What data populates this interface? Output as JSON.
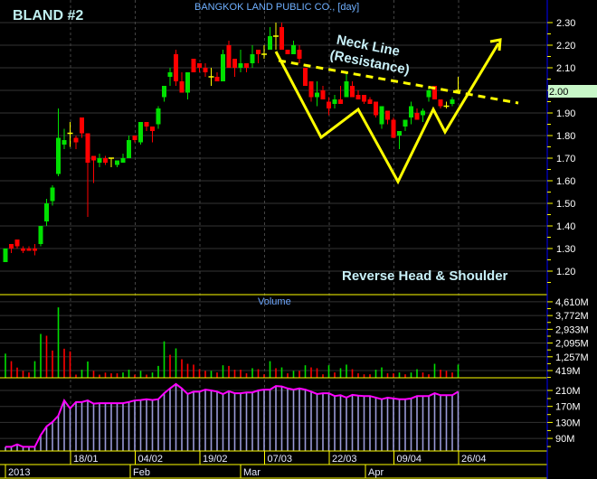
{
  "header": {
    "symbol_title": "BLAND #2",
    "company_title": "BANGKOK LAND PUBLIC CO., [day]"
  },
  "colors": {
    "up": "#00e000",
    "down": "#ff0000",
    "unchanged": "#ffff00",
    "grid": "#333333",
    "panel_border": "#ffff00",
    "axis_line": "#0000ff",
    "ma_line": "#ff00ff",
    "ma_bars": "#9a9ad8",
    "last_price_bg": "#c8f7c8",
    "annotation": "#ffff00",
    "annotation_text": "#c8f0f8"
  },
  "annotations": {
    "neck_line": "Neck Line",
    "resistance": "(Resistance)",
    "pattern": "Reverse Head & Shoulder"
  },
  "chart_data": [
    {
      "type": "candlestick",
      "title": "BANGKOK LAND PUBLIC CO., [day]",
      "ylim": [
        1.2,
        2.3
      ],
      "y_ticks": [
        "2.30",
        "2.20",
        "2.10",
        "2.00",
        "1.90",
        "1.80",
        "1.70",
        "1.60",
        "1.50",
        "1.40",
        "1.30",
        "1.20"
      ],
      "last_price": "2.00",
      "grid": true,
      "ohlc": [
        [
          1.24,
          1.3,
          1.24,
          1.3
        ],
        [
          1.32,
          1.32,
          1.28,
          1.3
        ],
        [
          1.34,
          1.34,
          1.3,
          1.31
        ],
        [
          1.3,
          1.31,
          1.28,
          1.29
        ],
        [
          1.3,
          1.31,
          1.29,
          1.29
        ],
        [
          1.3,
          1.32,
          1.27,
          1.29
        ],
        [
          1.32,
          1.4,
          1.31,
          1.4
        ],
        [
          1.42,
          1.52,
          1.4,
          1.5
        ],
        [
          1.51,
          1.58,
          1.49,
          1.57
        ],
        [
          1.63,
          1.92,
          1.62,
          1.79
        ],
        [
          1.76,
          1.83,
          1.74,
          1.78
        ],
        [
          1.81,
          1.86,
          1.75,
          1.81
        ],
        [
          1.79,
          1.8,
          1.74,
          1.77
        ],
        [
          1.88,
          1.88,
          1.79,
          1.81
        ],
        [
          1.81,
          1.81,
          1.44,
          1.68
        ],
        [
          1.71,
          1.71,
          1.59,
          1.69
        ],
        [
          1.68,
          1.72,
          1.66,
          1.7
        ],
        [
          1.7,
          1.71,
          1.67,
          1.68
        ],
        [
          1.7,
          1.7,
          1.66,
          1.7
        ],
        [
          1.67,
          1.69,
          1.66,
          1.69
        ],
        [
          1.68,
          1.72,
          1.68,
          1.7
        ],
        [
          1.7,
          1.8,
          1.7,
          1.78
        ],
        [
          1.8,
          1.8,
          1.77,
          1.78
        ],
        [
          1.77,
          1.86,
          1.76,
          1.86
        ],
        [
          1.86,
          1.86,
          1.82,
          1.84
        ],
        [
          1.84,
          1.84,
          1.77,
          1.82
        ],
        [
          1.85,
          1.93,
          1.83,
          1.92
        ],
        [
          1.97,
          2.02,
          1.95,
          2.02
        ],
        [
          2.06,
          2.1,
          2.02,
          2.08
        ],
        [
          2.16,
          2.18,
          2.02,
          2.04
        ],
        [
          2.04,
          2.08,
          1.99,
          1.99
        ],
        [
          1.99,
          2.08,
          1.96,
          2.08
        ],
        [
          2.14,
          2.14,
          2.08,
          2.08
        ],
        [
          2.12,
          2.12,
          2.08,
          2.1
        ],
        [
          2.1,
          2.12,
          2.06,
          2.08
        ],
        [
          2.06,
          2.1,
          2.02,
          2.06
        ],
        [
          2.06,
          2.08,
          2.04,
          2.04
        ],
        [
          2.04,
          2.18,
          2.04,
          2.16
        ],
        [
          2.2,
          2.22,
          2.1,
          2.1
        ],
        [
          2.14,
          2.14,
          2.06,
          2.1
        ],
        [
          2.1,
          2.18,
          2.08,
          2.12
        ],
        [
          2.12,
          2.12,
          2.08,
          2.1
        ],
        [
          2.12,
          2.2,
          2.1,
          2.16
        ],
        [
          2.18,
          2.18,
          2.12,
          2.16
        ],
        [
          2.16,
          2.2,
          2.14,
          2.16
        ],
        [
          2.18,
          2.28,
          2.18,
          2.24
        ],
        [
          2.24,
          2.3,
          2.18,
          2.24
        ],
        [
          2.28,
          2.3,
          2.18,
          2.18
        ],
        [
          2.18,
          2.18,
          2.16,
          2.16
        ],
        [
          2.16,
          2.22,
          2.16,
          2.2
        ],
        [
          2.18,
          2.2,
          2.12,
          2.14
        ],
        [
          2.1,
          2.1,
          2.02,
          2.02
        ],
        [
          2.04,
          2.04,
          1.95,
          1.97
        ],
        [
          1.97,
          2.04,
          1.93,
          1.99
        ],
        [
          2.0,
          2.02,
          1.96,
          1.96
        ],
        [
          1.95,
          1.97,
          1.89,
          1.92
        ],
        [
          1.94,
          1.98,
          1.92,
          1.96
        ],
        [
          1.96,
          2.02,
          1.94,
          1.94
        ],
        [
          1.97,
          2.08,
          1.97,
          2.04
        ],
        [
          2.02,
          2.04,
          1.97,
          1.97
        ],
        [
          1.98,
          2.0,
          1.96,
          1.96
        ],
        [
          1.98,
          1.98,
          1.94,
          1.95
        ],
        [
          1.96,
          1.97,
          1.94,
          1.94
        ],
        [
          1.95,
          1.95,
          1.88,
          1.89
        ],
        [
          1.85,
          1.93,
          1.83,
          1.93
        ],
        [
          1.91,
          1.91,
          1.85,
          1.87
        ],
        [
          1.87,
          1.88,
          1.79,
          1.79
        ],
        [
          1.8,
          1.82,
          1.74,
          1.82
        ],
        [
          1.84,
          1.87,
          1.82,
          1.87
        ],
        [
          1.88,
          1.95,
          1.85,
          1.93
        ],
        [
          1.9,
          1.92,
          1.87,
          1.87
        ],
        [
          1.89,
          1.92,
          1.86,
          1.91
        ],
        [
          1.97,
          2.02,
          1.95,
          2.0
        ],
        [
          2.02,
          2.02,
          1.96,
          1.96
        ],
        [
          1.96,
          1.96,
          1.92,
          1.93
        ],
        [
          1.93,
          1.95,
          1.92,
          1.93
        ],
        [
          1.94,
          1.97,
          1.93,
          1.96
        ],
        [
          2.0,
          2.06,
          2.0,
          2.0
        ]
      ]
    },
    {
      "type": "bar",
      "title": "Volume",
      "unit": "M",
      "ylim": [
        0,
        4610
      ],
      "y_ticks": [
        "4,610M",
        "3,772M",
        "2,933M",
        "2,095M",
        "1,257M",
        "419M"
      ],
      "y_tick_values": [
        4610,
        3772,
        2933,
        2095,
        1257,
        419
      ],
      "values": [
        1450,
        990,
        600,
        400,
        300,
        990,
        2650,
        2540,
        1640,
        4270,
        1750,
        1590,
        170,
        470,
        970,
        400,
        170,
        290,
        250,
        250,
        300,
        470,
        170,
        400,
        170,
        300,
        700,
        2200,
        1380,
        1770,
        1110,
        830,
        780,
        500,
        400,
        400,
        300,
        740,
        700,
        470,
        470,
        250,
        560,
        500,
        190,
        990,
        560,
        610,
        250,
        400,
        400,
        740,
        610,
        560,
        190,
        740,
        300,
        560,
        780,
        500,
        250,
        190,
        190,
        470,
        610,
        250,
        250,
        300,
        190,
        300,
        500,
        300,
        190,
        830,
        470,
        400,
        300,
        780
      ],
      "directions": [
        "up",
        "down",
        "down",
        "down",
        "down",
        "up",
        "up",
        "down",
        "down",
        "up",
        "down",
        "down",
        "down",
        "up",
        "up",
        "down",
        "down",
        "down",
        "down",
        "down",
        "up",
        "up",
        "down",
        "up",
        "down",
        "up",
        "up",
        "up",
        "down",
        "up",
        "down",
        "down",
        "down",
        "down",
        "down",
        "up",
        "down",
        "up",
        "down",
        "down",
        "down",
        "down",
        "up",
        "down",
        "down",
        "up",
        "down",
        "up",
        "down",
        "up",
        "down",
        "up",
        "down",
        "down",
        "down",
        "up",
        "down",
        "up",
        "up",
        "down",
        "down",
        "down",
        "down",
        "up",
        "up",
        "down",
        "down",
        "up",
        "down",
        "up",
        "up",
        "down",
        "down",
        "up",
        "down",
        "down",
        "down",
        "up"
      ]
    },
    {
      "type": "area",
      "unit": "M",
      "y_ticks": [
        "210M",
        "170M",
        "130M",
        "90M"
      ],
      "y_tick_values": [
        210,
        170,
        130,
        90
      ],
      "values": [
        69,
        69,
        75,
        69,
        69,
        69,
        98,
        120,
        131,
        147,
        185,
        165,
        181,
        181,
        185,
        177,
        178,
        178,
        178,
        178,
        178,
        181,
        185,
        186,
        188,
        186,
        188,
        203,
        215,
        226,
        215,
        201,
        207,
        207,
        212,
        210,
        207,
        201,
        208,
        203,
        203,
        205,
        205,
        210,
        212,
        212,
        221,
        220,
        215,
        212,
        215,
        212,
        207,
        201,
        203,
        203,
        196,
        198,
        192,
        199,
        197,
        196,
        196,
        192,
        188,
        192,
        190,
        188,
        188,
        190,
        196,
        196,
        196,
        203,
        198,
        198,
        198,
        207
      ]
    }
  ],
  "x_axis": {
    "date_labels": [
      "18/01",
      "04/02",
      "19/02",
      "07/03",
      "22/03",
      "09/04",
      "26/04"
    ],
    "month_labels": [
      "2013",
      "Feb",
      "Mar",
      "Apr"
    ]
  }
}
